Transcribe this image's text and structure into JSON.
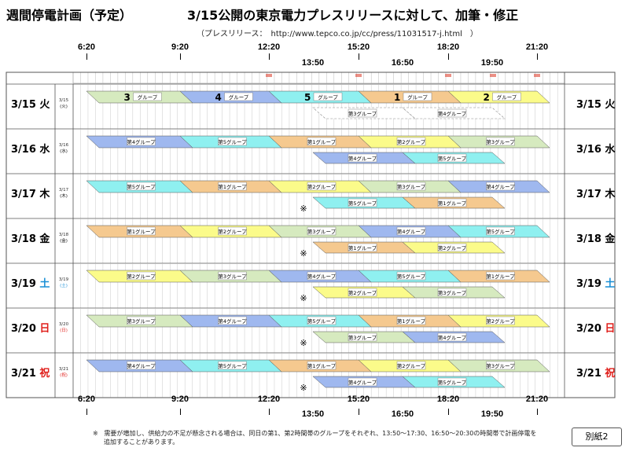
{
  "title": "週間停電計画（予定）",
  "subtitle": "3/15公開の東京電力プレスリリースに対して、加筆・修正",
  "press_note": "（プレスリリース：　http://www.tepco.co.jp/cc/press/11031517-j.html　）",
  "time_labels": {
    "top_row": [
      "6:20",
      "9:20",
      "12:20",
      "15:20",
      "18:20",
      "21:20"
    ],
    "lower_row": [
      "13:50",
      "16:50",
      "19:50"
    ]
  },
  "days": [
    {
      "date": "3/15",
      "dow": "火",
      "small_date": "3/15",
      "small_dow": "(火)",
      "color": "#000000"
    },
    {
      "date": "3/16",
      "dow": "水",
      "small_date": "3/16",
      "small_dow": "(水)",
      "color": "#000000"
    },
    {
      "date": "3/17",
      "dow": "木",
      "small_date": "3/17",
      "small_dow": "(木)",
      "color": "#000000"
    },
    {
      "date": "3/18",
      "dow": "金",
      "small_date": "3/18",
      "small_dow": "(金)",
      "color": "#000000"
    },
    {
      "date": "3/19",
      "dow": "土",
      "small_date": "3/19",
      "small_dow": "(土)",
      "color": "#1a8fd6"
    },
    {
      "date": "3/20",
      "dow": "日",
      "small_date": "3/20",
      "small_dow": "(日)",
      "color": "#e0201c"
    },
    {
      "date": "3/21",
      "dow": "祝",
      "small_date": "3/21",
      "small_dow": "(祝)",
      "color": "#e0201c"
    }
  ],
  "groups": {
    "g1": {
      "label": "第1グループ",
      "color": "#f5c98f"
    },
    "g2": {
      "label": "第2グループ",
      "color": "#fbfb8a"
    },
    "g3": {
      "label": "第3グループ",
      "color": "#d6eabf"
    },
    "g4": {
      "label": "第4グループ",
      "color": "#9fb8ef"
    },
    "g5": {
      "label": "第5グループ",
      "color": "#8ff0f0"
    }
  },
  "day15_labels": {
    "main": [
      {
        "num": "3",
        "text": "グループ"
      },
      {
        "num": "4",
        "text": "グループ"
      },
      {
        "num": "5",
        "text": "グループ"
      },
      {
        "num": "1",
        "text": "グループ"
      },
      {
        "num": "2",
        "text": "グループ"
      }
    ],
    "sub": [
      "第3グループ",
      "第4グループ"
    ]
  },
  "schedule": [
    {
      "main": [
        "g3",
        "g4",
        "g5",
        "g1",
        "g2"
      ],
      "sub": [
        "g3",
        "g4"
      ],
      "sub_dashed": true,
      "mark": ""
    },
    {
      "main": [
        "g4",
        "g5",
        "g1",
        "g2",
        "g3"
      ],
      "sub": [
        "g4",
        "g5"
      ],
      "sub_dashed": false,
      "mark": ""
    },
    {
      "main": [
        "g5",
        "g1",
        "g2",
        "g3",
        "g4"
      ],
      "sub": [
        "g5",
        "g1"
      ],
      "sub_dashed": true,
      "mark": "※"
    },
    {
      "main": [
        "g1",
        "g2",
        "g3",
        "g4",
        "g5"
      ],
      "sub": [
        "g1",
        "g2"
      ],
      "sub_dashed": true,
      "mark": "※"
    },
    {
      "main": [
        "g2",
        "g3",
        "g4",
        "g5",
        "g1"
      ],
      "sub": [
        "g2",
        "g3"
      ],
      "sub_dashed": true,
      "mark": "※"
    },
    {
      "main": [
        "g3",
        "g4",
        "g5",
        "g1",
        "g2"
      ],
      "sub": [
        "g3",
        "g4"
      ],
      "sub_dashed": true,
      "mark": "※"
    },
    {
      "main": [
        "g4",
        "g5",
        "g1",
        "g2",
        "g3"
      ],
      "sub": [
        "g4",
        "g5"
      ],
      "sub_dashed": true,
      "mark": "※"
    }
  ],
  "footnote_mark": "※",
  "footnote_line1": "需要が増加し、供給力の不足が懸念される場合は、同日の第1、第2時間帯のグループをそれぞれ、13:50～17:30、16:50～20:30の時間帯で計画停電を",
  "footnote_line2": "追加することがあります。",
  "attachment_label": "別紙2"
}
